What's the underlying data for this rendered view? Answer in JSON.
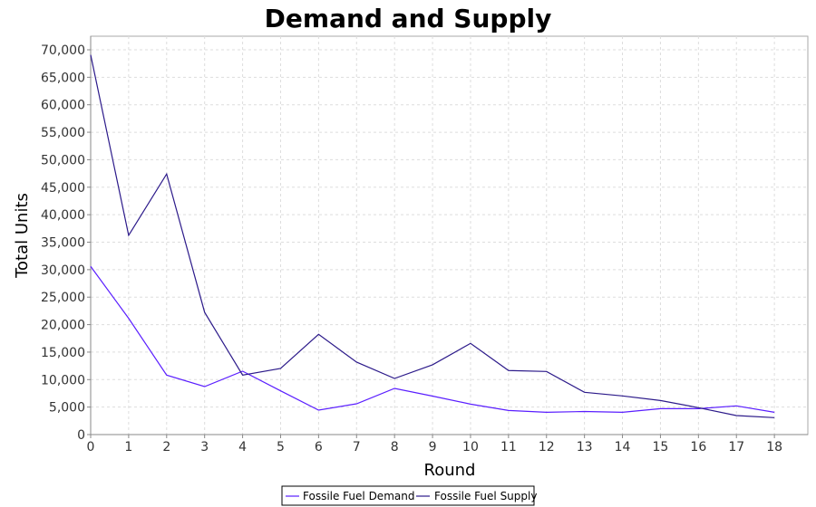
{
  "chart_data": {
    "type": "line",
    "title": "Demand and Supply",
    "xlabel": "Round",
    "ylabel": "Total Units",
    "xlim": [
      0,
      18.88
    ],
    "ylim": [
      0,
      72470
    ],
    "grid": true,
    "legend_position": "bottom",
    "x": [
      0,
      1,
      2,
      3,
      4,
      5,
      6,
      7,
      8,
      9,
      10,
      11,
      12,
      13,
      14,
      15,
      16,
      17,
      18
    ],
    "x_ticks": [
      "0",
      "1",
      "2",
      "3",
      "4",
      "5",
      "6",
      "7",
      "8",
      "9",
      "10",
      "11",
      "12",
      "13",
      "14",
      "15",
      "16",
      "17",
      "18"
    ],
    "y_tick_values": [
      0,
      5000,
      10000,
      15000,
      20000,
      25000,
      30000,
      35000,
      40000,
      45000,
      50000,
      55000,
      60000,
      65000,
      70000
    ],
    "y_ticks": [
      "0",
      "5,000",
      "10,000",
      "15,000",
      "20,000",
      "25,000",
      "30,000",
      "35,000",
      "40,000",
      "45,000",
      "50,000",
      "55,000",
      "60,000",
      "65,000",
      "70,000"
    ],
    "series": [
      {
        "name": "Fossile Fuel Demand",
        "color": "#5a1eff",
        "values": [
          30590,
          21140,
          10820,
          8730,
          11530,
          7960,
          4450,
          5600,
          8400,
          7000,
          5540,
          4390,
          4060,
          4200,
          4060,
          4720,
          4720,
          5220,
          4060
        ]
      },
      {
        "name": "Fossile Fuel Supply",
        "color": "#2c1a8a",
        "values": [
          69070,
          36240,
          47400,
          22240,
          10820,
          12030,
          18240,
          13180,
          10210,
          12700,
          16590,
          11650,
          11480,
          7690,
          7030,
          6200,
          4890,
          3460,
          3080
        ]
      }
    ]
  }
}
